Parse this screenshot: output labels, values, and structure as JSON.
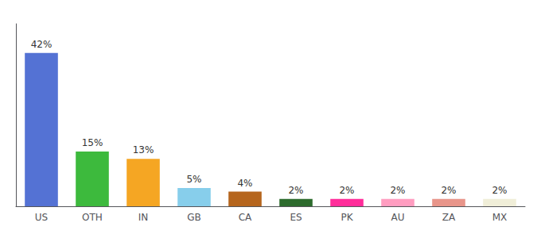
{
  "chart_data": {
    "type": "bar",
    "categories": [
      "US",
      "OTH",
      "IN",
      "GB",
      "CA",
      "ES",
      "PK",
      "AU",
      "ZA",
      "MX"
    ],
    "values": [
      42,
      15,
      13,
      5,
      4,
      2,
      2,
      2,
      2,
      2
    ],
    "value_labels": [
      "42%",
      "15%",
      "13%",
      "5%",
      "4%",
      "2%",
      "2%",
      "2%",
      "2%",
      "2%"
    ],
    "colors": [
      "#5472d4",
      "#3dba3d",
      "#f5a623",
      "#87ceeb",
      "#b5651d",
      "#2d6b2d",
      "#ff2d9a",
      "#ff9dc0",
      "#e8958a",
      "#f0eed8"
    ],
    "data_labels": true,
    "ylim": [
      0,
      50
    ],
    "grid": false,
    "tick_labels": "x"
  }
}
